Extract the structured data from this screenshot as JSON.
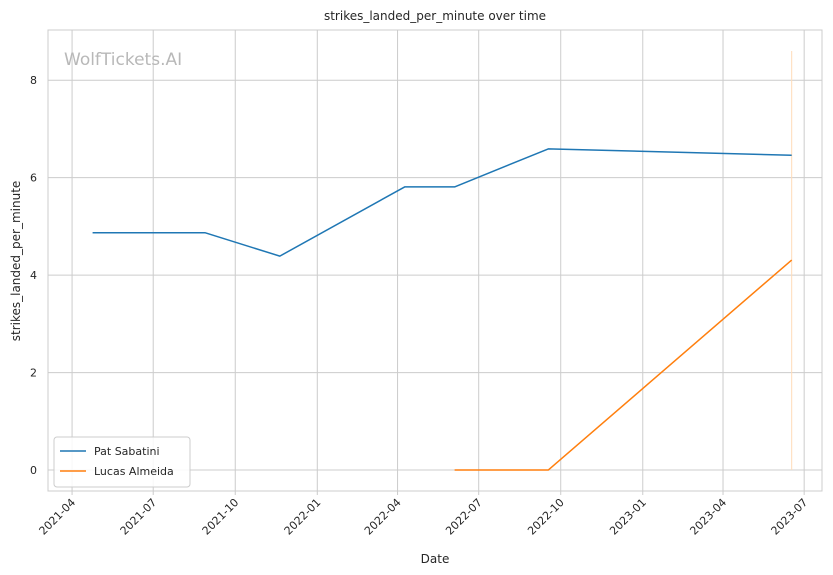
{
  "chart_data": {
    "type": "line",
    "title": "strikes_landed_per_minute over time",
    "xlabel": "Date",
    "ylabel": "strikes_landed_per_minute",
    "watermark": "WolfTickets.AI",
    "x_ticks": [
      "2021-04",
      "2021-07",
      "2021-10",
      "2022-01",
      "2022-04",
      "2022-07",
      "2022-10",
      "2023-01",
      "2023-04",
      "2023-07"
    ],
    "y_ticks": [
      0,
      2,
      4,
      6,
      8
    ],
    "xlim": [
      "2021-03-05",
      "2023-07-21"
    ],
    "ylim": [
      -0.43,
      9.03
    ],
    "grid": true,
    "legend_position": "lower-left",
    "series": [
      {
        "name": "Pat Sabatini",
        "color": "#1f77b4",
        "points": [
          {
            "x": "2021-04-24",
            "y": 4.87
          },
          {
            "x": "2021-08-28",
            "y": 4.87
          },
          {
            "x": "2021-11-20",
            "y": 4.39
          },
          {
            "x": "2022-04-09",
            "y": 5.81
          },
          {
            "x": "2022-06-04",
            "y": 5.81
          },
          {
            "x": "2022-09-17",
            "y": 6.59
          },
          {
            "x": "2023-06-17",
            "y": 6.46
          }
        ]
      },
      {
        "name": "Lucas Almeida",
        "color": "#ff7f0e",
        "points": [
          {
            "x": "2022-06-04",
            "y": 0.0
          },
          {
            "x": "2022-09-17",
            "y": 0.0
          },
          {
            "x": "2023-06-17",
            "y": 4.31
          }
        ]
      }
    ],
    "annotations": [
      {
        "type": "vertical-line",
        "x": "2023-06-17",
        "y_from": 0,
        "y_to": 8.6,
        "color": "#ffdcb8"
      }
    ]
  }
}
